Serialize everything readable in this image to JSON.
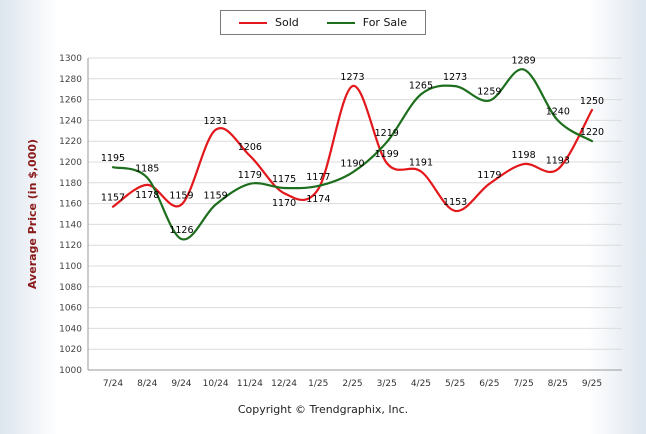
{
  "chart_data": {
    "type": "line",
    "title": "",
    "xlabel": "",
    "ylabel": "Average Price (in $,000)",
    "ylabel_color": "#8b1a1a",
    "ylim": [
      1000,
      1300
    ],
    "ytick_step": 20,
    "grid": true,
    "legend_position": "top",
    "line_style": "smooth",
    "categories": [
      "7/24",
      "8/24",
      "9/24",
      "10/24",
      "11/24",
      "12/24",
      "1/25",
      "2/25",
      "3/25",
      "4/25",
      "5/25",
      "6/25",
      "7/25",
      "8/25",
      "9/25"
    ],
    "series": [
      {
        "name": "Sold",
        "color": "#e3181c",
        "values": [
          1157,
          1178,
          1159,
          1231,
          1206,
          1170,
          1174,
          1273,
          1199,
          1191,
          1153,
          1179,
          1198,
          1193,
          1250
        ]
      },
      {
        "name": "For Sale",
        "color": "#1d6e1d",
        "values": [
          1195,
          1185,
          1126,
          1159,
          1179,
          1175,
          1177,
          1190,
          1219,
          1265,
          1273,
          1259,
          1289,
          1240,
          1220
        ]
      }
    ]
  },
  "footer": {
    "copyright": "Copyright © Trendgraphix, Inc."
  }
}
